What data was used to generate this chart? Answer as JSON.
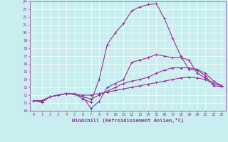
{
  "xlabel": "Windchill (Refroidissement éolien,°C)",
  "bg_color": "#c8eef0",
  "line_color": "#993399",
  "grid_color": "#ffffff",
  "xlim": [
    -0.5,
    23.5
  ],
  "ylim": [
    10,
    24
  ],
  "yticks": [
    10,
    11,
    12,
    13,
    14,
    15,
    16,
    17,
    18,
    19,
    20,
    21,
    22,
    23,
    24
  ],
  "xticks": [
    0,
    1,
    2,
    3,
    4,
    5,
    6,
    7,
    8,
    9,
    10,
    11,
    12,
    13,
    14,
    15,
    16,
    17,
    18,
    19,
    20,
    21,
    22,
    23
  ],
  "curves": [
    [
      11.3,
      11.1,
      11.8,
      12.0,
      12.2,
      12.2,
      11.5,
      11.1,
      14.0,
      18.5,
      20.0,
      21.2,
      22.8,
      23.3,
      23.6,
      23.7,
      21.8,
      19.3,
      17.0,
      15.3,
      15.2,
      14.5,
      13.2,
      13.1
    ],
    [
      11.3,
      11.1,
      11.8,
      12.0,
      12.2,
      12.1,
      11.8,
      10.3,
      11.2,
      13.0,
      13.5,
      14.0,
      16.2,
      16.5,
      16.8,
      17.2,
      17.0,
      16.8,
      16.8,
      16.5,
      14.8,
      14.2,
      13.5,
      13.2
    ],
    [
      11.3,
      11.3,
      11.8,
      12.0,
      12.2,
      12.1,
      11.8,
      11.5,
      12.0,
      12.5,
      13.0,
      13.5,
      13.8,
      14.0,
      14.3,
      14.8,
      15.2,
      15.5,
      15.5,
      15.5,
      15.3,
      14.8,
      13.8,
      13.2
    ],
    [
      11.3,
      11.3,
      11.8,
      12.0,
      12.2,
      12.1,
      12.0,
      12.0,
      12.2,
      12.4,
      12.6,
      12.8,
      13.0,
      13.2,
      13.4,
      13.6,
      13.8,
      14.0,
      14.2,
      14.3,
      14.2,
      14.0,
      13.5,
      13.2
    ]
  ],
  "tick_fontsize": 4.0,
  "xlabel_fontsize": 5.0,
  "spine_linewidth": 0.5,
  "line_width": 0.8,
  "marker_size": 2.5,
  "marker_lw": 0.7
}
